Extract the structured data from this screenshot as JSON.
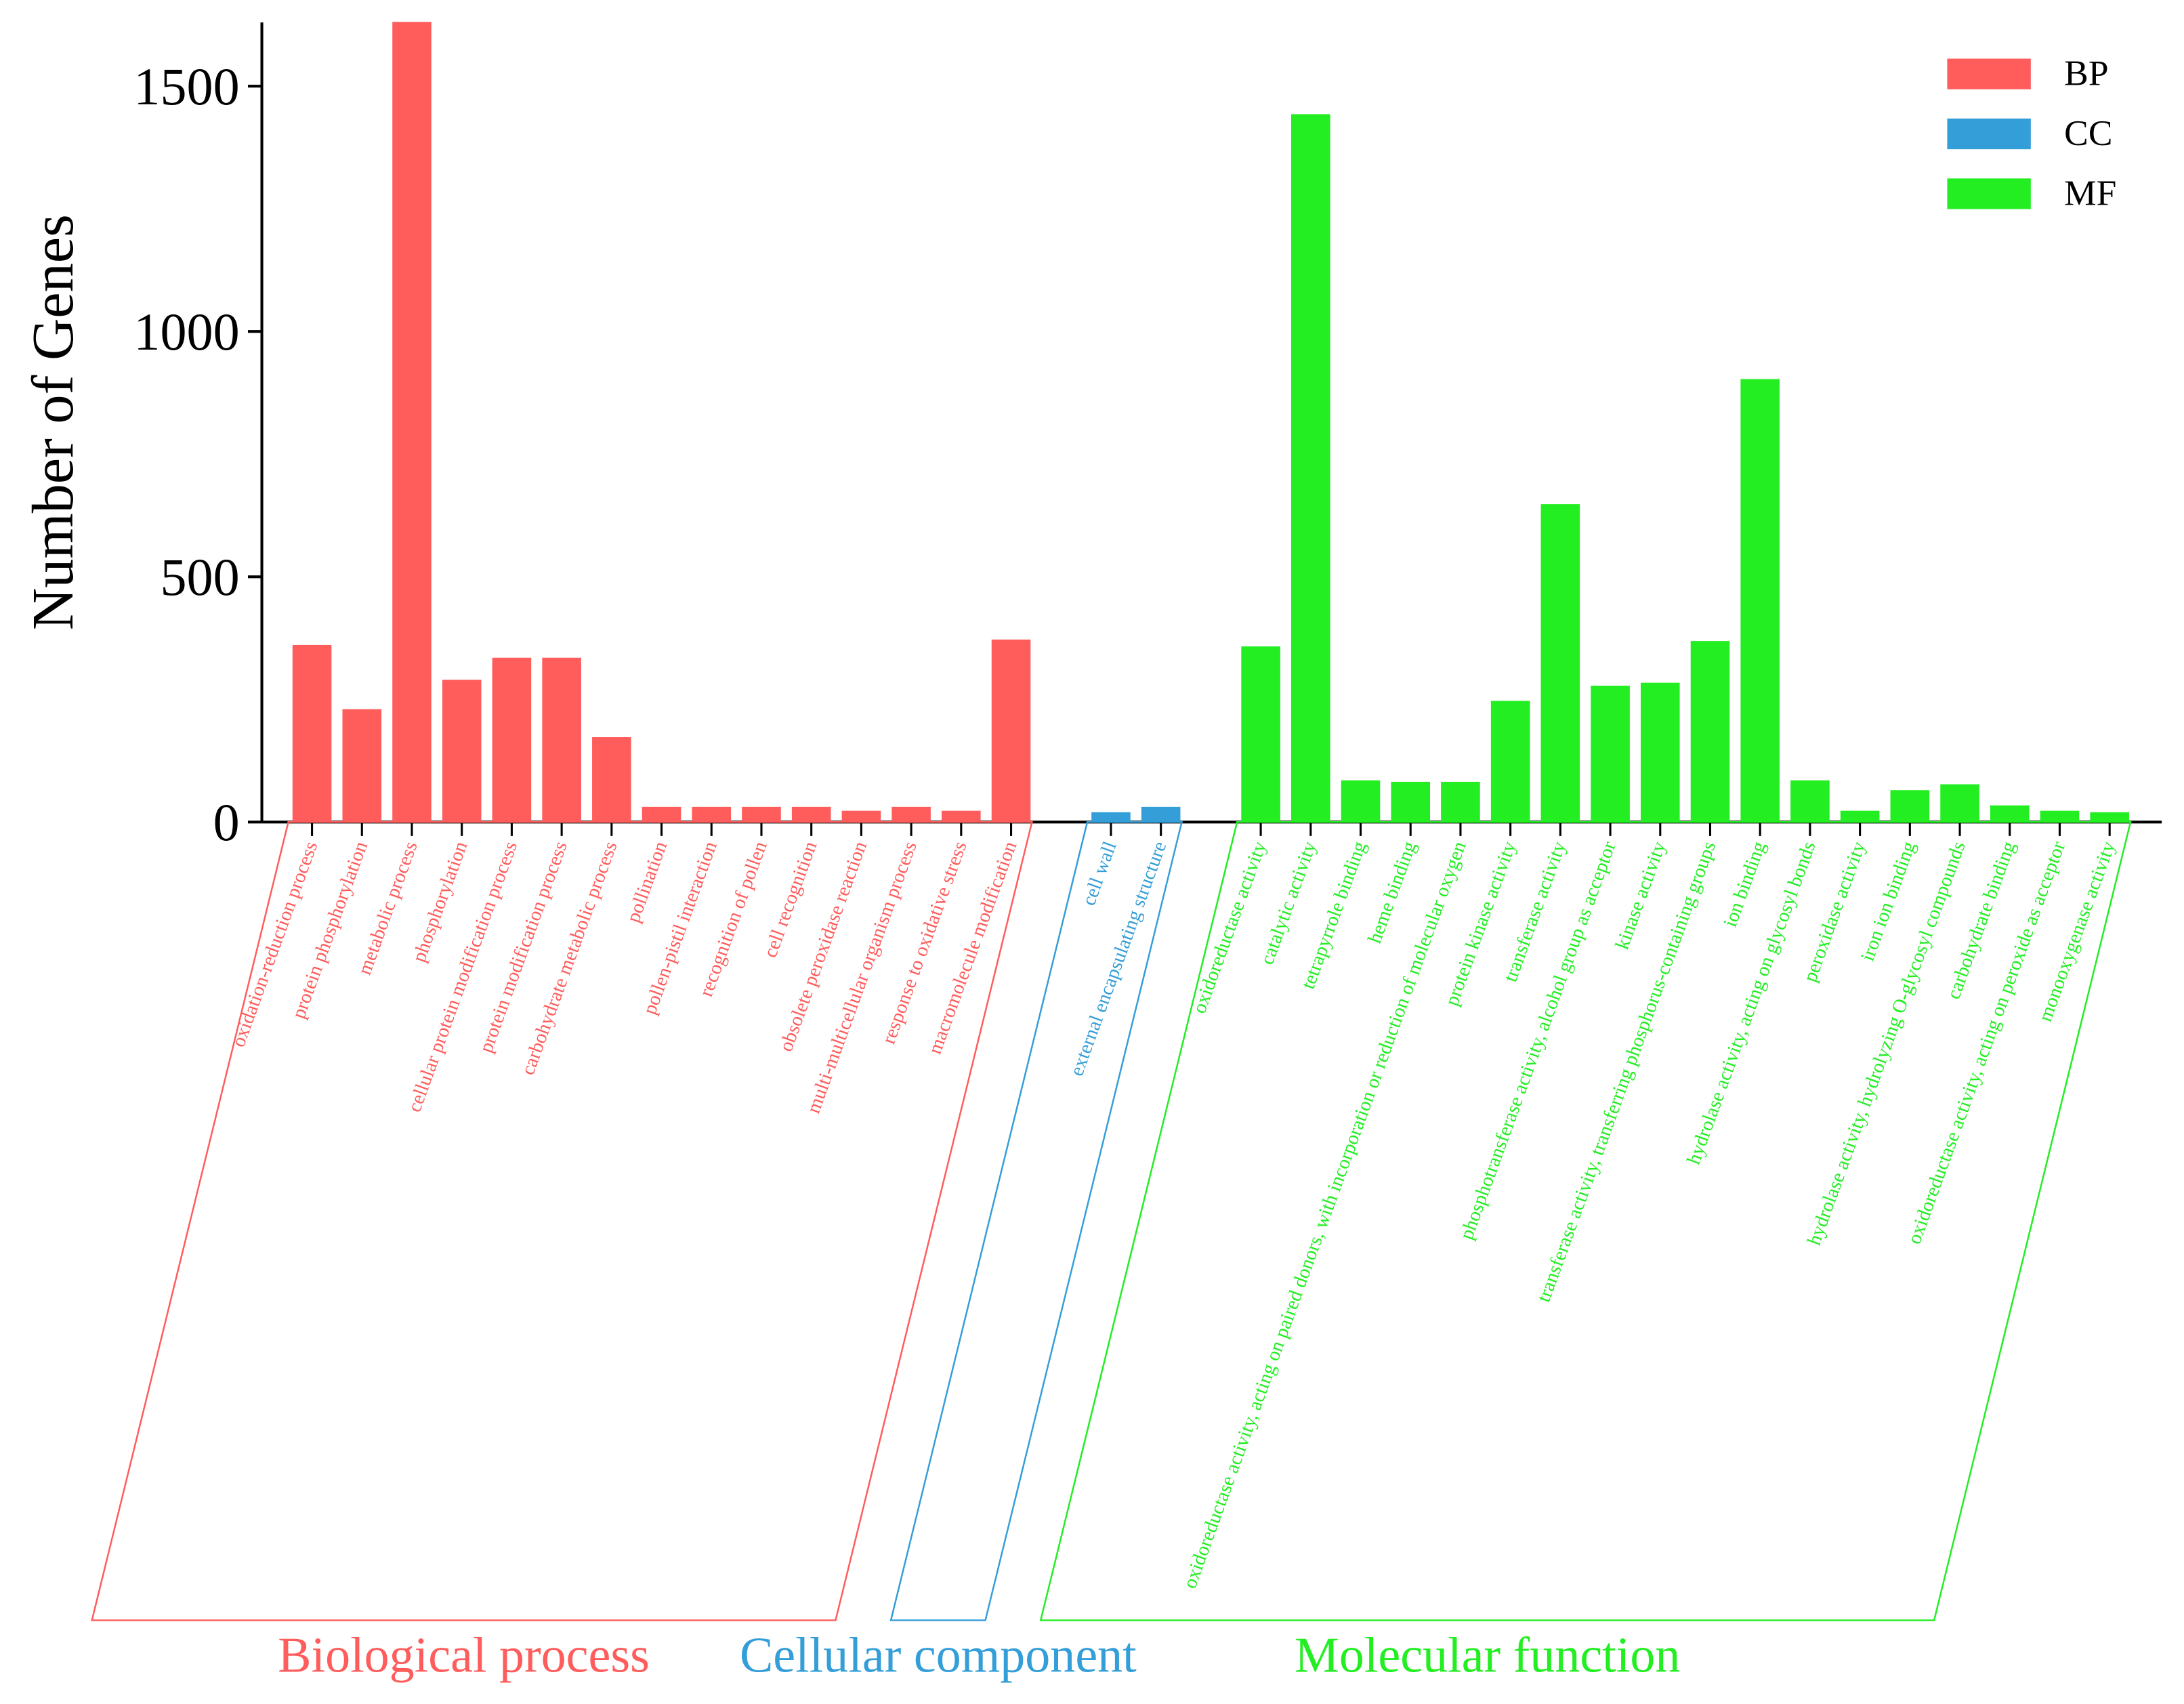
{
  "chart_data": {
    "type": "bar",
    "y_label": "Number of Genes",
    "ylim": [
      0,
      1630
    ],
    "yticks": [
      0,
      500,
      1000,
      1500
    ],
    "legend": "upper right",
    "categories": [
      "oxidation-reduction process",
      "protein phosphorylation",
      "metabolic process",
      "phosphorylation",
      "cellular protein modification process",
      "protein modification process",
      "carbohydrate metabolic process",
      "pollination",
      "pollen-pistil interaction",
      "recognition of pollen",
      "cell recognition",
      "obsolete peroxidase reaction",
      "multi-multicellular organism process",
      "response to oxidative stress",
      "macromolecule modification",
      "cell wall",
      "external encapsulating structure",
      "oxidoreductase activity",
      "catalytic activity",
      "tetrapyrrole binding",
      "heme binding",
      "oxidoreductase activity, acting on paired donors, with incorporation or reduction of molecular oxygen",
      "protein kinase activity",
      "transferase activity",
      "phosphotransferase activity, alcohol group as acceptor",
      "kinase activity",
      "transferase activity, transferring phosphorus-containing groups",
      "ion binding",
      "hydrolase activity, acting on glycosyl bonds",
      "peroxidase activity",
      "iron ion binding",
      "hydrolase activity, hydrolyzing O-glycosyl compounds",
      "carbohydrate binding",
      "oxidoreductase activity, acting on peroxide as acceptor",
      "monooxygenase activity"
    ],
    "groups": [
      "Biological process",
      "Cellular component",
      "Molecular function"
    ],
    "series": [
      {
        "name": "BP",
        "color": "#ff5c5c",
        "values": [
          361,
          230,
          1631,
          290,
          335,
          335,
          173,
          31,
          31,
          31,
          31,
          23,
          31,
          23,
          372,
          null,
          null,
          null,
          null,
          null,
          null,
          null,
          null,
          null,
          null,
          null,
          null,
          null,
          null,
          null,
          null,
          null,
          null,
          null,
          null
        ]
      },
      {
        "name": "CC",
        "color": "#339ed8",
        "values": [
          null,
          null,
          null,
          null,
          null,
          null,
          null,
          null,
          null,
          null,
          null,
          null,
          null,
          null,
          null,
          20,
          31,
          null,
          null,
          null,
          null,
          null,
          null,
          null,
          null,
          null,
          null,
          null,
          null,
          null,
          null,
          null,
          null,
          null,
          null
        ]
      },
      {
        "name": "MF",
        "color": "#22ee22",
        "values": [
          null,
          null,
          null,
          null,
          null,
          null,
          null,
          null,
          null,
          null,
          null,
          null,
          null,
          null,
          null,
          null,
          null,
          358,
          1443,
          85,
          82,
          82,
          247,
          648,
          278,
          284,
          369,
          903,
          85,
          23,
          65,
          77,
          34,
          23,
          20
        ]
      }
    ]
  }
}
